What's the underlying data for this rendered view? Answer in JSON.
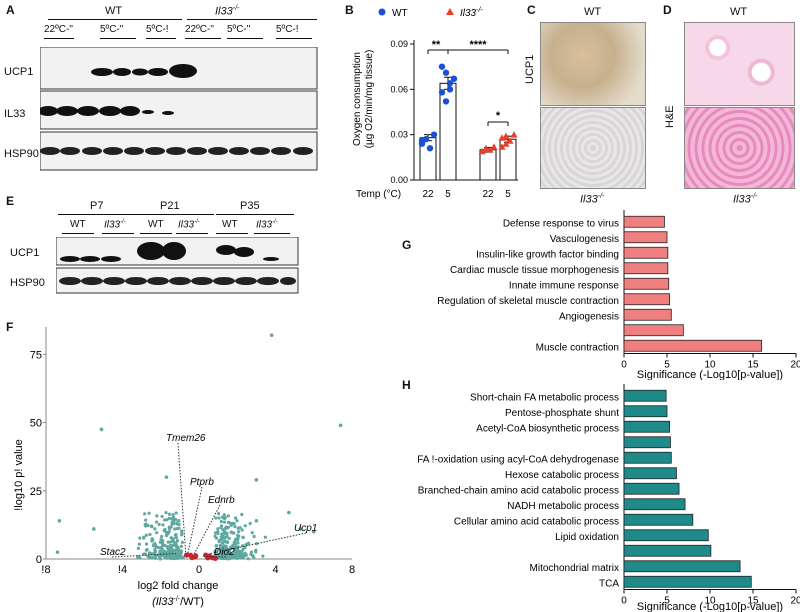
{
  "panels": {
    "A": "A",
    "B": "B",
    "C": "C",
    "D": "D",
    "E": "E",
    "F": "F",
    "G": "G",
    "H": "H"
  },
  "colors": {
    "wt": "#1a4fd6",
    "il33": "#e8402a",
    "g_bar": "#f08080",
    "h_bar": "#1f8a8a",
    "volcano": "#5fa8a0",
    "volcano_hi": "#c0272d"
  },
  "panelA": {
    "group_wt": "WT",
    "group_ko": "Il33",
    "ko_sup": "-/-",
    "conditions": [
      "22ºC-\"",
      "5ºC-\"",
      "5ºC-!",
      "22ºC-\"",
      "5ºC-\"",
      "5ºC-!"
    ],
    "rows": [
      "UCP1",
      "IL33",
      "HSP90"
    ]
  },
  "panelB": {
    "legend_wt": "WT",
    "legend_ko": "Il33",
    "ylabel_line1": "Oxygen consumption",
    "ylabel_line2": "(µg O2/min/mg tissue)",
    "ticks": [
      "0.00",
      "0.03",
      "0.06",
      "0.09"
    ],
    "xtitle": "Temp (°C)",
    "xticks": [
      "22",
      "5",
      "22",
      "5"
    ],
    "sig1": "**",
    "sig2": "****",
    "sig3": "*"
  },
  "panelC": {
    "top": "WT",
    "bottom": "Il33",
    "sup": "-/-",
    "side": "UCP1"
  },
  "panelD": {
    "top": "WT",
    "bottom": "Il33",
    "sup": "-/-",
    "side": "H&E"
  },
  "panelE": {
    "ages": [
      "P7",
      "P21",
      "P35"
    ],
    "genotypes": [
      "WT",
      "Il33",
      "WT",
      "Il33",
      "WT",
      "Il33"
    ],
    "sup": "-/-",
    "rows": [
      "UCP1",
      "HSP90"
    ]
  },
  "panelF": {
    "ylabel": "!log10 p! value",
    "yticks": [
      "0",
      "25",
      "50",
      "75"
    ],
    "xticks": [
      "!8",
      "!4",
      "0",
      "4",
      "8"
    ],
    "xlabel": "log2 fold change",
    "xlabel2_pre": "(Il33",
    "xlabel2_sup": "-/-",
    "xlabel2_post": "/WT)",
    "genes": [
      "Tmem26",
      "Ptprb",
      "Ednrb",
      "Ucp1",
      "Stac2",
      "Dio2"
    ]
  },
  "chart_data": [
    {
      "type": "bar",
      "title": "",
      "xlabel": "Temp (°C)",
      "ylabel": "Oxygen consumption (µg O2/min/mg tissue)",
      "categories": [
        "22",
        "5",
        "22",
        "5"
      ],
      "series": [
        {
          "name": "WT",
          "values": [
            0.028,
            0.064,
            null,
            null
          ]
        },
        {
          "name": "Il33-/-",
          "values": [
            null,
            null,
            0.02,
            0.027
          ]
        }
      ],
      "points": [
        [
          0.024,
          0.027,
          0.021,
          0.03,
          0.026
        ],
        [
          0.075,
          0.071,
          0.064,
          0.067,
          0.058,
          0.052,
          0.06
        ],
        [
          0.019,
          0.021,
          0.02,
          0.022
        ],
        [
          0.028,
          0.024,
          0.026,
          0.03,
          0.022,
          0.029
        ]
      ],
      "ylim": [
        0,
        0.09
      ]
    },
    {
      "type": "bar",
      "orientation": "horizontal",
      "xlabel": "Significance (-Log10[p-value])",
      "xticks": [
        "0",
        "5",
        "10",
        "15",
        "20"
      ],
      "categories": [
        "Defense response to virus",
        "Vasculogenesis",
        "Insulin-like growth factor binding",
        "Cardiac muscle tissue morphogenesis",
        "Innate immune response",
        "Regulation of skeletal muscle contraction",
        "Angiogenesis",
        "",
        "Muscle contraction"
      ],
      "values": [
        4.7,
        5.0,
        5.1,
        5.1,
        5.2,
        5.3,
        5.5,
        6.9,
        16.0
      ],
      "xlim": [
        0,
        20
      ]
    },
    {
      "type": "bar",
      "orientation": "horizontal",
      "xlabel": "Significance (-Log10[p-value])",
      "xticks": [
        "0",
        "5",
        "10",
        "15",
        "20"
      ],
      "categories": [
        "Short-chain FA metabolic process",
        "Pentose-phosphate shunt",
        "Acetyl-CoA biosynthetic process",
        "",
        "FA !-oxidation using acyl-CoA dehydrogenase",
        "Hexose catabolic process",
        "Branched-chain amino acid catabolic process",
        "NADH metabolic process",
        "Cellular amino acid catabolic process",
        "Lipid oxidation",
        "",
        "Mitochondrial matrix",
        "TCA"
      ],
      "values": [
        4.9,
        5.0,
        5.3,
        5.4,
        5.5,
        6.1,
        6.4,
        7.1,
        8.0,
        9.8,
        10.1,
        13.5,
        14.8
      ],
      "xlim": [
        0,
        20
      ]
    },
    {
      "type": "scatter",
      "xlabel": "log2 fold change (Il33-/-/WT)",
      "ylabel": "!log10 p! value",
      "xlim": [
        -8,
        8
      ],
      "ylim": [
        0,
        85
      ],
      "highlight": [
        {
          "label": "Tmem26",
          "x": -0.7,
          "y": 2.5
        },
        {
          "label": "Ptprb",
          "x": -0.6,
          "y": 1.5
        },
        {
          "label": "Ednrb",
          "x": -0.3,
          "y": 1.2
        },
        {
          "label": "Ucp1",
          "x": 0.6,
          "y": 2.0
        },
        {
          "label": "Stac2",
          "x": -1.2,
          "y": 2.0
        },
        {
          "label": "Dio2",
          "x": 0.2,
          "y": 1.0
        }
      ],
      "outliers": [
        [
          3.8,
          82
        ],
        [
          7.4,
          49
        ],
        [
          -5.1,
          47.5
        ],
        [
          -1.7,
          30
        ],
        [
          3.0,
          29
        ],
        [
          -7.3,
          14
        ],
        [
          -5.5,
          11
        ],
        [
          3.0,
          14
        ],
        [
          4.7,
          17
        ],
        [
          5.3,
          11
        ],
        [
          6.0,
          10
        ],
        [
          -7.4,
          2.5
        ]
      ]
    }
  ]
}
